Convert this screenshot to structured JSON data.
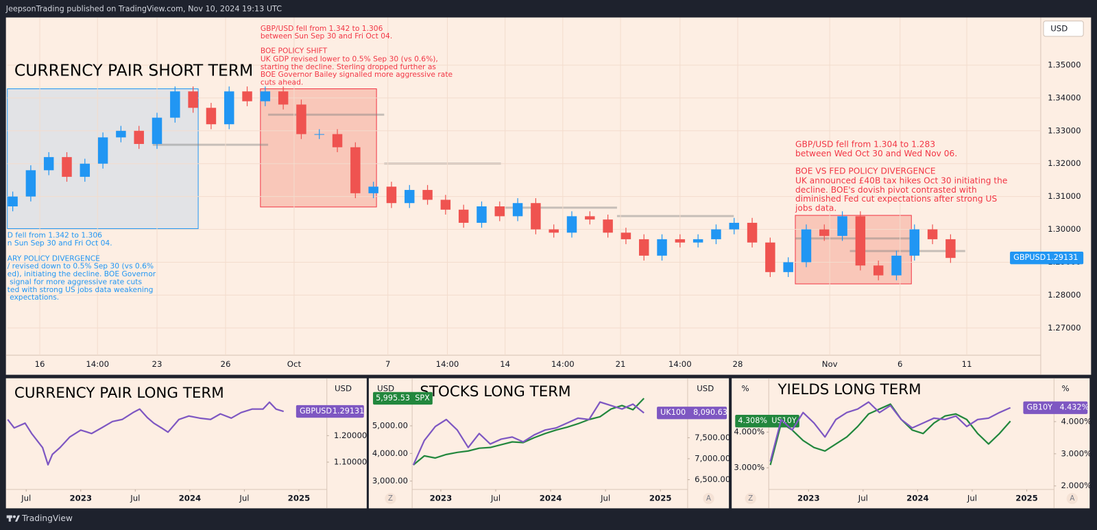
{
  "header": "JeepsonTrading published on TradingView.com, Nov 10, 2024 19:13 UTC",
  "footer": "TradingView",
  "chart_data": [
    {
      "type": "candlestick",
      "title": "CURRENCY PAIR SHORT TERM",
      "currency": "USD",
      "symbol": "GBPUSD",
      "up_color": "#2196f3",
      "down_color": "#ef5350",
      "grid": true,
      "open": [
        1.307,
        1.31,
        1.318,
        1.322,
        1.316,
        1.32,
        1.328,
        1.33,
        1.326,
        1.334,
        1.342,
        1.337,
        1.332,
        1.342,
        1.339,
        1.342,
        1.338,
        1.329,
        1.329,
        1.325,
        1.311,
        1.313,
        1.308,
        1.312,
        1.309,
        1.306,
        1.302,
        1.307,
        1.304,
        1.308,
        1.3,
        1.299,
        1.304,
        1.303,
        1.299,
        1.297,
        1.292,
        1.297,
        1.296,
        1.297,
        1.3,
        1.302,
        1.296,
        1.287,
        1.29,
        1.3,
        1.298,
        1.304,
        1.289,
        1.286,
        1.292,
        1.3,
        1.297
      ],
      "high": [
        1.3115,
        1.3195,
        1.3235,
        1.3235,
        1.3215,
        1.3295,
        1.3315,
        1.3315,
        1.3355,
        1.3435,
        1.3435,
        1.3385,
        1.3435,
        1.3435,
        1.3435,
        1.3435,
        1.3395,
        1.3305,
        1.3305,
        1.3265,
        1.3145,
        1.3145,
        1.3135,
        1.3135,
        1.3105,
        1.3075,
        1.3085,
        1.3085,
        1.3095,
        1.3095,
        1.3015,
        1.3055,
        1.3055,
        1.3045,
        1.3005,
        1.2985,
        1.2985,
        1.2985,
        1.2985,
        1.3015,
        1.3035,
        1.3035,
        1.2975,
        1.2915,
        1.3015,
        1.3015,
        1.3055,
        1.3055,
        1.2905,
        1.2935,
        1.3015,
        1.3015,
        1.2985
      ],
      "low": [
        1.3055,
        1.3085,
        1.3165,
        1.3145,
        1.3145,
        1.3185,
        1.3265,
        1.3245,
        1.3245,
        1.3325,
        1.3355,
        1.3305,
        1.3305,
        1.3375,
        1.3375,
        1.3365,
        1.3275,
        1.3275,
        1.3235,
        1.3095,
        1.3095,
        1.3065,
        1.3065,
        1.3075,
        1.3045,
        1.3005,
        1.3005,
        1.3025,
        1.3025,
        1.2985,
        1.2975,
        1.2975,
        1.3015,
        1.2975,
        1.2955,
        1.2905,
        1.2905,
        1.2945,
        1.2945,
        1.2955,
        1.2985,
        1.2945,
        1.2855,
        1.2855,
        1.2885,
        1.2965,
        1.2965,
        1.2875,
        1.2845,
        1.2845,
        1.2905,
        1.2955,
        1.2898
      ],
      "close": [
        1.31,
        1.318,
        1.322,
        1.316,
        1.32,
        1.328,
        1.33,
        1.326,
        1.334,
        1.342,
        1.337,
        1.332,
        1.342,
        1.339,
        1.342,
        1.338,
        1.329,
        1.329,
        1.325,
        1.311,
        1.313,
        1.308,
        1.312,
        1.309,
        1.306,
        1.302,
        1.307,
        1.304,
        1.308,
        1.3,
        1.299,
        1.304,
        1.303,
        1.299,
        1.297,
        1.292,
        1.297,
        1.296,
        1.297,
        1.3,
        1.302,
        1.296,
        1.287,
        1.29,
        1.3,
        1.298,
        1.304,
        1.289,
        1.286,
        1.292,
        1.3,
        1.297,
        1.29131
      ],
      "xlim": [
        -0.3,
        57
      ],
      "xticks": [
        {
          "value": 1.5,
          "label": "16"
        },
        {
          "value": 4.7,
          "label": "14:00"
        },
        {
          "value": 8,
          "label": "23"
        },
        {
          "value": 11.8,
          "label": "26"
        },
        {
          "value": 15.6,
          "label": "Oct"
        },
        {
          "value": 20.8,
          "label": "7"
        },
        {
          "value": 24.1,
          "label": "14:00"
        },
        {
          "value": 27.3,
          "label": "14"
        },
        {
          "value": 30.5,
          "label": "14:00"
        },
        {
          "value": 33.7,
          "label": "21"
        },
        {
          "value": 37,
          "label": "14:00"
        },
        {
          "value": 40.2,
          "label": "28"
        },
        {
          "value": 45.3,
          "label": "Nov"
        },
        {
          "value": 49.2,
          "label": "6"
        },
        {
          "value": 52.9,
          "label": "11"
        }
      ],
      "ylim": [
        1.2617,
        1.3645
      ],
      "yticks": [
        {
          "value": 1.35,
          "label": "1.35000"
        },
        {
          "value": 1.34,
          "label": "1.34000"
        },
        {
          "value": 1.33,
          "label": "1.33000"
        },
        {
          "value": 1.32,
          "label": "1.32000"
        },
        {
          "value": 1.31,
          "label": "1.31000"
        },
        {
          "value": 1.3,
          "label": "1.30000"
        },
        {
          "value": 1.29,
          "label": "1.29000"
        },
        {
          "value": 1.28,
          "label": "1.28000"
        },
        {
          "value": 1.27,
          "label": "1.27000"
        }
      ],
      "annotations": [
        {
          "color": "#2196f3",
          "summary": [
            "D fell from 1.342 to 1.306",
            "n Sun Sep 30 and Fri Oct 04."
          ],
          "heading": "ARY POLICY DIVERGENCE",
          "body": [
            "/ revised down to 0.5% Sep 30 (vs 0.6%",
            "ed), initiating the decline. BOE Governor",
            " signal for more aggressive rate cuts",
            "ted with strong US jobs data weakening",
            " expectations."
          ]
        },
        {
          "color": "#f23645",
          "summary": [
            "GBP/USD fell from 1.342 to 1.306",
            "between Sun Sep 30 and Fri Oct 04."
          ],
          "heading": "BOE POLICY SHIFT",
          "body": [
            "UK GDP revised lower to 0.5% Sep 30 (vs 0.6%),",
            "starting the decline. Sterling dropped further as",
            "BOE Governor Bailey signalled more aggressive rate",
            "cuts ahead."
          ]
        },
        {
          "color": "#f23645",
          "summary": [
            "GBP/USD fell from 1.304 to 1.283",
            "between Wed Oct 30 and Wed Nov 06."
          ],
          "heading": "BOE VS FED POLICY DIVERGENCE",
          "body": [
            "UK announced £40B tax hikes Oct 30 initiating the",
            "decline. BOE's dovish pivot contrasted with",
            "diminished Fed cut expectations after strong US",
            "jobs data."
          ]
        }
      ]
    },
    {
      "type": "line",
      "title": "CURRENCY PAIR LONG TERM",
      "currency": "USD",
      "grid": false,
      "x": [
        2022.33,
        2022.39,
        2022.49,
        2022.55,
        2022.65,
        2022.7,
        2022.74,
        2022.81,
        2022.9,
        2023,
        2023.1,
        2023.19,
        2023.29,
        2023.38,
        2023.48,
        2023.54,
        2023.61,
        2023.67,
        2023.74,
        2023.8,
        2023.9,
        2023.99,
        2024.09,
        2024.19,
        2024.28,
        2024.38,
        2024.47,
        2024.57,
        2024.67,
        2024.73,
        2024.79,
        2024.86
      ],
      "series": [
        {
          "name": "GBPUSD",
          "color": "#7e57c2",
          "values": [
            1.261,
            1.229,
            1.247,
            1.208,
            1.155,
            1.09,
            1.129,
            1.155,
            1.195,
            1.221,
            1.208,
            1.229,
            1.253,
            1.261,
            1.287,
            1.3,
            1.268,
            1.247,
            1.229,
            1.213,
            1.261,
            1.274,
            1.266,
            1.261,
            1.282,
            1.266,
            1.287,
            1.3,
            1.3,
            1.326,
            1.3,
            1.29131
          ]
        }
      ],
      "xlim": [
        2022.327,
        2025.256
      ],
      "xticks": [
        {
          "value": 2022.5,
          "label": "Jul"
        },
        2023,
        {
          "value": 2023.5,
          "label": "Jul"
        },
        2024,
        {
          "value": 2024.5,
          "label": "Jul"
        },
        2025
      ],
      "ylim": [
        0.997,
        1.411
      ],
      "yticks": [
        {
          "value": 1.2,
          "label": "1.20000"
        },
        {
          "value": 1.1,
          "label": "1.10000"
        }
      ]
    },
    {
      "type": "line",
      "title": "STOCKS LONG TERM",
      "currency": "USD",
      "y2_currency": "USD",
      "buttons": [
        "Z",
        "A"
      ],
      "grid": false,
      "x": [
        2022.75,
        2022.85,
        2022.95,
        2023.05,
        2023.15,
        2023.25,
        2023.35,
        2023.45,
        2023.55,
        2023.65,
        2023.75,
        2023.85,
        2023.95,
        2024.05,
        2024.15,
        2024.25,
        2024.35,
        2024.45,
        2024.55,
        2024.65,
        2024.75,
        2024.85
      ],
      "series": [
        {
          "name": "SPX",
          "color": "#22873d",
          "values": [
            3582,
            3911,
            3835,
            3962,
            4038,
            4088,
            4190,
            4215,
            4316,
            4418,
            4392,
            4570,
            4721,
            4848,
            4949,
            5076,
            5228,
            5329,
            5608,
            5734,
            5582,
            5995.53
          ],
          "value_labels": [
            null,
            null,
            null,
            null,
            null,
            null,
            null,
            null,
            null,
            null,
            null,
            null,
            null,
            null,
            null,
            null,
            null,
            null,
            null,
            null,
            null,
            "5,995.53"
          ]
        },
        {
          "name": "UK100",
          "color": "#7e57c2",
          "axis": "y2",
          "values": [
            6850,
            7433,
            7767,
            7933,
            7683,
            7267,
            7600,
            7350,
            7467,
            7517,
            7400,
            7567,
            7683,
            7733,
            7850,
            7967,
            7933,
            8350,
            8267,
            8183,
            8300,
            8090.63
          ],
          "value_labels": [
            null,
            null,
            null,
            null,
            null,
            null,
            null,
            null,
            null,
            null,
            null,
            null,
            null,
            null,
            null,
            null,
            null,
            null,
            null,
            null,
            null,
            "8,090.63"
          ]
        }
      ],
      "xlim": [
        2022.739,
        2025.248
      ],
      "xticks": [
        2023,
        {
          "value": 2023.5,
          "label": "Jul"
        },
        2024,
        {
          "value": 2024.5,
          "label": "Jul"
        },
        2025
      ],
      "ylim": [
        2696,
        6671
      ],
      "yticks": [
        {
          "value": 5000,
          "label": "5,000.00"
        },
        {
          "value": 4000,
          "label": "4,000.00"
        },
        {
          "value": 3000,
          "label": "3,000.00"
        }
      ],
      "y2lim": [
        6267,
        8883
      ],
      "y2ticks": [
        {
          "value": 7500,
          "label": "7,500.00"
        },
        {
          "value": 7000,
          "label": "7,000.00"
        },
        {
          "value": 6500,
          "label": "6,500.00"
        }
      ]
    },
    {
      "type": "line",
      "title": "YIELDS LONG TERM",
      "currency": "%",
      "y2_currency": "%",
      "buttons": [
        "Z",
        "A"
      ],
      "grid": false,
      "x": [
        2022.65,
        2022.75,
        2022.85,
        2022.95,
        2023.05,
        2023.15,
        2023.25,
        2023.35,
        2023.45,
        2023.55,
        2023.65,
        2023.75,
        2023.85,
        2023.95,
        2024.05,
        2024.15,
        2024.25,
        2024.35,
        2024.45,
        2024.55,
        2024.65,
        2024.75,
        2024.85
      ],
      "series": [
        {
          "name": "US10Y",
          "color": "#22873d",
          "values": [
            3.078,
            4.255,
            4.059,
            3.765,
            3.569,
            3.471,
            3.667,
            3.863,
            4.157,
            4.51,
            4.647,
            4.784,
            4.353,
            4.059,
            3.961,
            4.255,
            4.451,
            4.51,
            4.353,
            3.961,
            3.667,
            3.961,
            4.308
          ],
          "value_labels": [
            null,
            null,
            null,
            null,
            null,
            null,
            null,
            null,
            null,
            null,
            null,
            null,
            null,
            null,
            null,
            null,
            null,
            null,
            null,
            null,
            null,
            null,
            "4.308%"
          ]
        },
        {
          "name": "GB10Y",
          "color": "#7e57c2",
          "axis": "y2",
          "values": [
            2.761,
            4.065,
            3.739,
            4.283,
            3.957,
            3.522,
            4.065,
            4.283,
            4.391,
            4.609,
            4.283,
            4.5,
            4.065,
            3.804,
            3.957,
            4.109,
            4.065,
            4.174,
            3.848,
            4.065,
            4.109,
            4.283,
            4.432
          ],
          "value_labels": [
            null,
            null,
            null,
            null,
            null,
            null,
            null,
            null,
            null,
            null,
            null,
            null,
            null,
            null,
            null,
            null,
            null,
            null,
            null,
            null,
            null,
            null,
            "4.432%"
          ]
        }
      ],
      "xlim": [
        2022.635,
        2025.25
      ],
      "xticks": [
        2023,
        {
          "value": 2023.5,
          "label": "Jul"
        },
        2024,
        {
          "value": 2024.5,
          "label": "Jul"
        },
        2025
      ],
      "ylim": [
        2.392,
        5.47
      ],
      "yticks": [
        {
          "value": 4,
          "label": "4.000%"
        },
        {
          "value": 3,
          "label": "3.000%"
        }
      ],
      "y2lim": [
        1.891,
        5.304
      ],
      "y2ticks": [
        {
          "value": 4,
          "label": "4.000%"
        },
        {
          "value": 3,
          "label": "3.000%"
        },
        {
          "value": 2,
          "label": "2.000%"
        }
      ]
    }
  ]
}
